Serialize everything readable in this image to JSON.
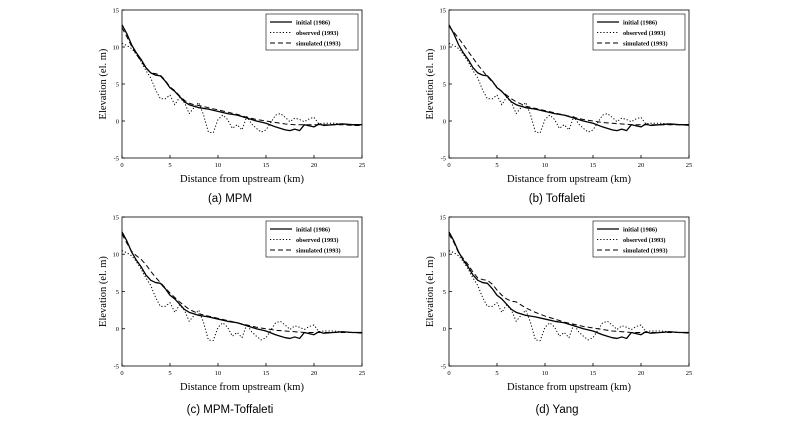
{
  "chart_data": [
    {
      "type": "line",
      "caption": "(a)  MPM",
      "xlabel": "Distance from upstream (km)",
      "ylabel": "Elevation (el. m)",
      "xlim": [
        0,
        25
      ],
      "ylim": [
        -5,
        15
      ],
      "xticks": [
        "0",
        "5",
        "10",
        "15",
        "20",
        "25"
      ],
      "yticks": [
        "15",
        "10",
        "5",
        "0",
        "-5"
      ],
      "legend_position": "top-right",
      "series": [
        {
          "name": "initial (1986)",
          "style": "solid",
          "x": [
            0,
            0.5,
            1,
            1.5,
            2,
            2.5,
            3,
            3.5,
            4,
            4.5,
            5,
            5.5,
            6,
            6.5,
            7,
            7.5,
            8,
            9,
            10,
            11,
            12,
            13,
            14,
            15,
            16,
            16.5,
            17,
            17.5,
            18,
            18.5,
            19,
            20,
            20.5,
            21,
            22,
            23,
            24,
            25
          ],
          "y": [
            13,
            11.8,
            10.3,
            9.2,
            8.3,
            7.2,
            6.5,
            6.2,
            6.1,
            5.4,
            4.5,
            4,
            3.3,
            2.6,
            2.2,
            2,
            1.8,
            1.6,
            1.3,
            1,
            0.8,
            0.4,
            0,
            -0.3,
            -0.8,
            -1,
            -1.2,
            -1.3,
            -1.1,
            -1.3,
            -0.5,
            -0.8,
            -0.4,
            -0.6,
            -0.5,
            -0.4,
            -0.5,
            -0.5
          ]
        },
        {
          "name": "observed (1993)",
          "style": "dotted",
          "x": [
            0,
            0.5,
            1,
            1.5,
            2,
            2.5,
            3,
            3.5,
            4,
            4.5,
            5,
            5.5,
            6,
            6.5,
            7,
            7.5,
            8,
            8.5,
            9,
            9.5,
            10,
            10.5,
            11,
            11.5,
            12,
            12.5,
            13,
            13.5,
            14,
            14.5,
            15,
            15.5,
            16,
            16.5,
            17,
            17.5,
            18,
            18.5,
            19,
            19.5,
            20,
            20.5,
            21,
            22,
            23,
            24,
            25
          ],
          "y": [
            10.5,
            10.2,
            9.8,
            9,
            8,
            6.8,
            5.8,
            4.2,
            3,
            3,
            3.5,
            2.2,
            3.2,
            2.5,
            1,
            1.8,
            2.5,
            0.8,
            -1.5,
            -1.6,
            0.2,
            0.8,
            0.2,
            -1,
            -0.5,
            -1.2,
            0.6,
            -0.4,
            -1,
            -1.5,
            -1.2,
            -0.2,
            0.8,
            1,
            0.5,
            -0.1,
            0.4,
            0.2,
            -0.1,
            0.3,
            0.5,
            -0.4,
            -0.3,
            -0.3,
            -0.4,
            -0.5,
            -0.5
          ]
        },
        {
          "name": "simulated (1993)",
          "style": "dashed",
          "x": [
            0,
            0.5,
            1,
            1.5,
            2,
            2.5,
            3,
            3.5,
            4,
            4.5,
            5,
            5.5,
            6,
            6.5,
            7,
            7.5,
            8,
            9,
            10,
            11,
            12,
            13,
            14,
            15,
            16,
            17,
            18,
            19,
            20,
            21,
            22,
            23,
            24,
            25
          ],
          "y": [
            12.6,
            11.4,
            10.1,
            9,
            8.1,
            7.1,
            6.5,
            6.4,
            6.2,
            5.5,
            4.6,
            4.1,
            3.4,
            2.8,
            2.4,
            2.2,
            2.1,
            1.8,
            1.5,
            1.2,
            0.9,
            0.5,
            0.2,
            0,
            -0.2,
            -0.4,
            -0.5,
            -0.5,
            -0.5,
            -0.5,
            -0.5,
            -0.5,
            -0.6,
            -0.6
          ]
        }
      ]
    },
    {
      "type": "line",
      "caption": "(b)  Toffaleti",
      "xlabel": "Distance from upstream (km)",
      "ylabel": "Elevation (el. m)",
      "xlim": [
        0,
        25
      ],
      "ylim": [
        -5,
        15
      ],
      "xticks": [
        "0",
        "5",
        "10",
        "15",
        "20",
        "25"
      ],
      "yticks": [
        "15",
        "10",
        "5",
        "0",
        "-5"
      ],
      "legend_position": "top-right",
      "series": [
        {
          "name": "initial (1986)",
          "style": "solid",
          "x": [
            0,
            0.5,
            1,
            1.5,
            2,
            2.5,
            3,
            3.5,
            4,
            4.5,
            5,
            5.5,
            6,
            6.5,
            7,
            7.5,
            8,
            9,
            10,
            11,
            12,
            13,
            14,
            15,
            16,
            16.5,
            17,
            17.5,
            18,
            18.5,
            19,
            20,
            20.5,
            21,
            22,
            23,
            24,
            25
          ],
          "y": [
            13,
            11.8,
            10.3,
            9.2,
            8.3,
            7.2,
            6.5,
            6.2,
            6.1,
            5.4,
            4.5,
            4,
            3.3,
            2.6,
            2.2,
            2,
            1.8,
            1.6,
            1.3,
            1,
            0.8,
            0.4,
            0,
            -0.3,
            -0.8,
            -1,
            -1.2,
            -1.3,
            -1.1,
            -1.3,
            -0.5,
            -0.8,
            -0.4,
            -0.6,
            -0.5,
            -0.4,
            -0.5,
            -0.5
          ]
        },
        {
          "name": "observed (1993)",
          "style": "dotted",
          "x": [
            0,
            0.5,
            1,
            1.5,
            2,
            2.5,
            3,
            3.5,
            4,
            4.5,
            5,
            5.5,
            6,
            6.5,
            7,
            7.5,
            8,
            8.5,
            9,
            9.5,
            10,
            10.5,
            11,
            11.5,
            12,
            12.5,
            13,
            13.5,
            14,
            14.5,
            15,
            15.5,
            16,
            16.5,
            17,
            17.5,
            18,
            18.5,
            19,
            19.5,
            20,
            20.5,
            21,
            22,
            23,
            24,
            25
          ],
          "y": [
            10.5,
            10.2,
            9.8,
            9,
            8,
            6.8,
            5.8,
            4.2,
            3,
            3,
            3.5,
            2.2,
            3.2,
            2.5,
            1,
            1.8,
            2.5,
            0.8,
            -1.5,
            -1.6,
            0.2,
            0.8,
            0.2,
            -1,
            -0.5,
            -1.2,
            0.6,
            -0.4,
            -1,
            -1.5,
            -1.2,
            -0.2,
            0.8,
            1,
            0.5,
            -0.1,
            0.4,
            0.2,
            -0.1,
            0.3,
            0.5,
            -0.4,
            -0.3,
            -0.3,
            -0.4,
            -0.5,
            -0.5
          ]
        },
        {
          "name": "simulated (1993)",
          "style": "dashed",
          "x": [
            0,
            0.5,
            1,
            1.5,
            2,
            2.5,
            3,
            3.5,
            4,
            4.5,
            5,
            5.5,
            6,
            6.5,
            7,
            7.5,
            8,
            9,
            10,
            11,
            12,
            13,
            14,
            15,
            16,
            17,
            18,
            19,
            20,
            21,
            22,
            23,
            24,
            25
          ],
          "y": [
            12.8,
            12,
            11.2,
            10.3,
            9.4,
            8.5,
            7.6,
            6.8,
            6,
            5.3,
            4.6,
            4,
            3.5,
            3,
            2.6,
            2.3,
            2,
            1.7,
            1.4,
            1.1,
            0.8,
            0.5,
            0.2,
            0,
            -0.2,
            -0.3,
            -0.4,
            -0.5,
            -0.5,
            -0.5,
            -0.5,
            -0.5,
            -0.5,
            -0.6
          ]
        }
      ]
    },
    {
      "type": "line",
      "caption": "(c)  MPM-Toffaleti",
      "xlabel": "Distance from upstream (km)",
      "ylabel": "Elevation (el. m)",
      "xlim": [
        0,
        25
      ],
      "ylim": [
        -5,
        15
      ],
      "xticks": [
        "0",
        "5",
        "10",
        "15",
        "20",
        "25"
      ],
      "yticks": [
        "15",
        "10",
        "5",
        "0",
        "-5"
      ],
      "legend_position": "top-right",
      "series": [
        {
          "name": "initial (1986)",
          "style": "solid",
          "x": [
            0,
            0.5,
            1,
            1.5,
            2,
            2.5,
            3,
            3.5,
            4,
            4.5,
            5,
            5.5,
            6,
            6.5,
            7,
            7.5,
            8,
            9,
            10,
            11,
            12,
            13,
            14,
            15,
            16,
            16.5,
            17,
            17.5,
            18,
            18.5,
            19,
            20,
            20.5,
            21,
            22,
            23,
            24,
            25
          ],
          "y": [
            13,
            11.8,
            10.3,
            9.2,
            8.3,
            7.2,
            6.5,
            6.2,
            6.1,
            5.4,
            4.5,
            4,
            3.3,
            2.6,
            2.2,
            2,
            1.8,
            1.6,
            1.3,
            1,
            0.8,
            0.4,
            0,
            -0.3,
            -0.8,
            -1,
            -1.2,
            -1.3,
            -1.1,
            -1.3,
            -0.5,
            -0.8,
            -0.4,
            -0.6,
            -0.5,
            -0.4,
            -0.5,
            -0.5
          ]
        },
        {
          "name": "observed (1993)",
          "style": "dotted",
          "x": [
            0,
            0.5,
            1,
            1.5,
            2,
            2.5,
            3,
            3.5,
            4,
            4.5,
            5,
            5.5,
            6,
            6.5,
            7,
            7.5,
            8,
            8.5,
            9,
            9.5,
            10,
            10.5,
            11,
            11.5,
            12,
            12.5,
            13,
            13.5,
            14,
            14.5,
            15,
            15.5,
            16,
            16.5,
            17,
            17.5,
            18,
            18.5,
            19,
            19.5,
            20,
            20.5,
            21,
            22,
            23,
            24,
            25
          ],
          "y": [
            10.5,
            10.2,
            9.8,
            9,
            8,
            6.8,
            5.8,
            4.2,
            3,
            3,
            3.5,
            2.2,
            3.2,
            2.5,
            1,
            1.8,
            2.5,
            0.8,
            -1.5,
            -1.6,
            0.2,
            0.8,
            0.2,
            -1,
            -0.5,
            -1.2,
            0.6,
            -0.4,
            -1,
            -1.5,
            -1.2,
            -0.2,
            0.8,
            1,
            0.5,
            -0.1,
            0.4,
            0.2,
            -0.1,
            0.3,
            0.5,
            -0.4,
            -0.3,
            -0.3,
            -0.4,
            -0.5,
            -0.5
          ]
        },
        {
          "name": "simulated (1993)",
          "style": "dashed",
          "x": [
            0,
            0.5,
            1,
            1.5,
            2,
            2.5,
            3,
            3.5,
            4,
            4.5,
            5,
            5.5,
            6,
            6.5,
            7,
            7.5,
            8,
            9,
            10,
            11,
            12,
            13,
            14,
            15,
            16,
            17,
            18,
            19,
            20,
            21,
            22,
            23,
            24,
            25
          ],
          "y": [
            12.7,
            11.5,
            10.4,
            9.8,
            9.3,
            8.6,
            7.7,
            6.9,
            6.2,
            5.5,
            4.8,
            4.2,
            3.6,
            3.1,
            2.6,
            2.3,
            2,
            1.7,
            1.4,
            1.1,
            0.8,
            0.5,
            0.2,
            0,
            -0.2,
            -0.3,
            -0.4,
            -0.5,
            -0.5,
            -0.5,
            -0.5,
            -0.5,
            -0.5,
            -0.6
          ]
        }
      ]
    },
    {
      "type": "line",
      "caption": "(d)  Yang",
      "xlabel": "Distance from upstream (km)",
      "ylabel": "Elevation (el. m)",
      "xlim": [
        0,
        25
      ],
      "ylim": [
        -5,
        15
      ],
      "xticks": [
        "0",
        "5",
        "10",
        "15",
        "20",
        "25"
      ],
      "yticks": [
        "15",
        "10",
        "5",
        "0",
        "-5"
      ],
      "legend_position": "top-right",
      "series": [
        {
          "name": "initial (1986)",
          "style": "solid",
          "x": [
            0,
            0.5,
            1,
            1.5,
            2,
            2.5,
            3,
            3.5,
            4,
            4.5,
            5,
            5.5,
            6,
            6.5,
            7,
            7.5,
            8,
            9,
            10,
            11,
            12,
            13,
            14,
            15,
            16,
            16.5,
            17,
            17.5,
            18,
            18.5,
            19,
            20,
            20.5,
            21,
            22,
            23,
            24,
            25
          ],
          "y": [
            13,
            11.8,
            10.3,
            9.2,
            8.3,
            7.2,
            6.5,
            6.2,
            6.1,
            5.4,
            4.5,
            4,
            3.3,
            2.6,
            2.2,
            2,
            1.8,
            1.6,
            1.3,
            1,
            0.8,
            0.4,
            0,
            -0.3,
            -0.8,
            -1,
            -1.2,
            -1.3,
            -1.1,
            -1.3,
            -0.5,
            -0.8,
            -0.4,
            -0.6,
            -0.5,
            -0.4,
            -0.5,
            -0.5
          ]
        },
        {
          "name": "observed (1993)",
          "style": "dotted",
          "x": [
            0,
            0.5,
            1,
            1.5,
            2,
            2.5,
            3,
            3.5,
            4,
            4.5,
            5,
            5.5,
            6,
            6.5,
            7,
            7.5,
            8,
            8.5,
            9,
            9.5,
            10,
            10.5,
            11,
            11.5,
            12,
            12.5,
            13,
            13.5,
            14,
            14.5,
            15,
            15.5,
            16,
            16.5,
            17,
            17.5,
            18,
            18.5,
            19,
            19.5,
            20,
            20.5,
            21,
            22,
            23,
            24,
            25
          ],
          "y": [
            10.5,
            10.2,
            9.8,
            9,
            8,
            6.8,
            5.8,
            4.2,
            3,
            3,
            3.5,
            2.2,
            3.2,
            2.5,
            1,
            1.8,
            2.5,
            0.8,
            -1.5,
            -1.6,
            0.2,
            0.8,
            0.2,
            -1,
            -0.5,
            -1.2,
            0.6,
            -0.4,
            -1,
            -1.5,
            -1.2,
            -0.2,
            0.8,
            1,
            0.5,
            -0.1,
            0.4,
            0.2,
            -0.1,
            0.3,
            0.5,
            -0.4,
            -0.3,
            -0.3,
            -0.4,
            -0.5,
            -0.5
          ]
        },
        {
          "name": "simulated (1993)",
          "style": "dashed",
          "x": [
            0,
            0.5,
            1,
            1.5,
            2,
            2.5,
            3,
            3.5,
            4,
            4.5,
            5,
            5.5,
            6,
            6.5,
            7,
            7.5,
            8,
            9,
            10,
            11,
            12,
            13,
            14,
            15,
            16,
            17,
            18,
            19,
            20,
            21,
            22,
            23,
            24,
            25
          ],
          "y": [
            12.7,
            11.6,
            10.2,
            9.4,
            8.6,
            7.6,
            6.8,
            6.6,
            6.5,
            6,
            5.2,
            4.5,
            4,
            3.7,
            3.6,
            3.2,
            2.8,
            2.2,
            1.7,
            1.3,
            0.9,
            0.6,
            0.3,
            0.1,
            -0.1,
            -0.3,
            -0.4,
            -0.5,
            -0.5,
            -0.5,
            -0.5,
            -0.5,
            -0.5,
            -0.6
          ]
        }
      ]
    }
  ]
}
